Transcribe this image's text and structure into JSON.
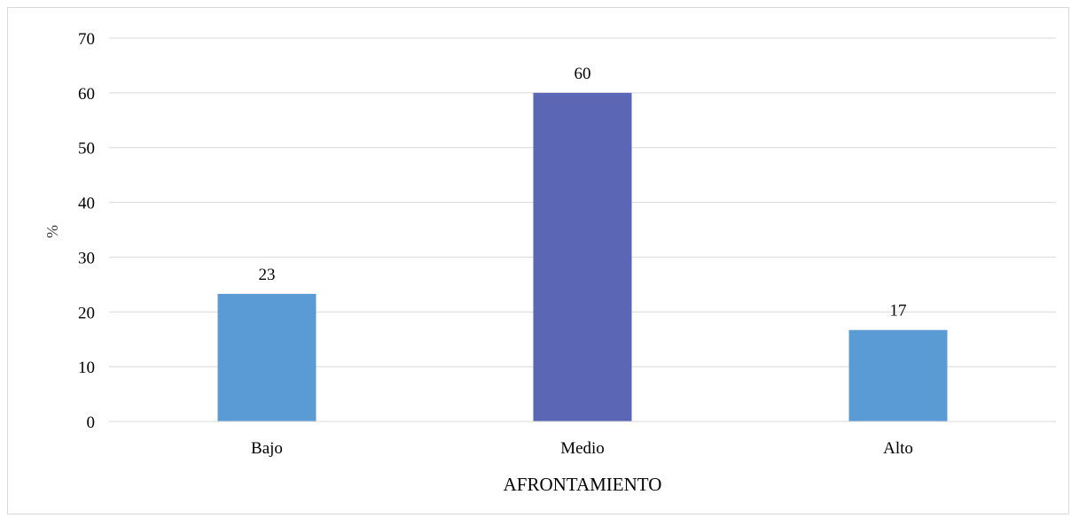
{
  "chart_data": {
    "type": "bar",
    "title": "",
    "xlabel": "AFRONTAMIENTO",
    "ylabel": "%",
    "categories": [
      "Bajo",
      "Medio",
      "Alto"
    ],
    "values": [
      23.3,
      60.0,
      16.7
    ],
    "data_labels": [
      "23",
      "60",
      "17"
    ],
    "bar_colors": [
      "#5b9bd5",
      "#5b66b5",
      "#5b9bd5"
    ],
    "ylim": [
      0,
      70
    ],
    "yticks": [
      "0",
      "10",
      "20",
      "30",
      "40",
      "50",
      "60",
      "70"
    ],
    "grid": true,
    "legend": "none"
  },
  "colors": {
    "gridline": "#d9d9d9",
    "axis": "#d9d9d9",
    "bar_default": "#5b9bd5",
    "bar_highlight": "#5b66b5"
  }
}
